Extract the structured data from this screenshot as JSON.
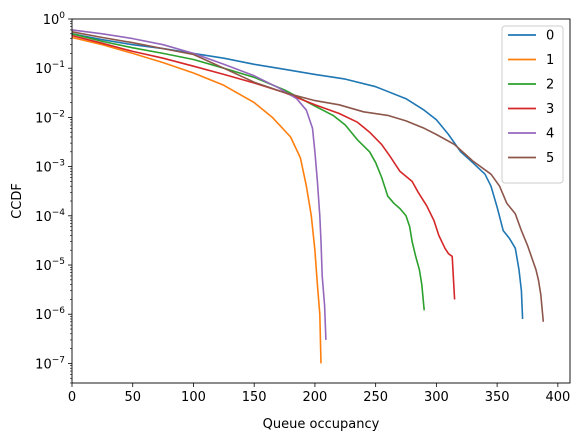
{
  "chart_data": {
    "type": "line",
    "title": "",
    "xlabel": "Queue occupancy",
    "ylabel": "CCDF",
    "xscale": "linear",
    "yscale": "log",
    "xlim": [
      0,
      410
    ],
    "ylim": [
      4e-08,
      1
    ],
    "grid": false,
    "legend_position": "top-right",
    "xticks": [
      0,
      50,
      100,
      150,
      200,
      250,
      300,
      350,
      400
    ],
    "yticks": [
      {
        "value": 1e-07,
        "base": "10",
        "exp": "−7"
      },
      {
        "value": 1e-06,
        "base": "10",
        "exp": "−6"
      },
      {
        "value": 1e-05,
        "base": "10",
        "exp": "−5"
      },
      {
        "value": 0.0001,
        "base": "10",
        "exp": "−4"
      },
      {
        "value": 0.001,
        "base": "10",
        "exp": "−3"
      },
      {
        "value": 0.01,
        "base": "10",
        "exp": "−2"
      },
      {
        "value": 0.1,
        "base": "10",
        "exp": "−1"
      },
      {
        "value": 1,
        "base": "10",
        "exp": "0"
      }
    ],
    "series": [
      {
        "name": "0",
        "color": "#1f77b4",
        "points": [
          [
            0,
            0.5
          ],
          [
            25,
            0.38
          ],
          [
            50,
            0.3
          ],
          [
            75,
            0.25
          ],
          [
            100,
            0.2
          ],
          [
            125,
            0.16
          ],
          [
            150,
            0.12
          ],
          [
            175,
            0.095
          ],
          [
            200,
            0.075
          ],
          [
            225,
            0.06
          ],
          [
            250,
            0.042
          ],
          [
            275,
            0.024
          ],
          [
            290,
            0.014
          ],
          [
            300,
            0.009
          ],
          [
            310,
            0.0045
          ],
          [
            320,
            0.002
          ],
          [
            330,
            0.0012
          ],
          [
            340,
            0.0007
          ],
          [
            345,
            0.0004
          ],
          [
            350,
            0.00015
          ],
          [
            355,
            5e-05
          ],
          [
            360,
            3.5e-05
          ],
          [
            365,
            2.2e-05
          ],
          [
            368,
            8e-06
          ],
          [
            370,
            3e-06
          ],
          [
            371,
            8e-07
          ]
        ]
      },
      {
        "name": "1",
        "color": "#ff7f0e",
        "points": [
          [
            0,
            0.42
          ],
          [
            25,
            0.3
          ],
          [
            50,
            0.2
          ],
          [
            75,
            0.13
          ],
          [
            100,
            0.08
          ],
          [
            125,
            0.045
          ],
          [
            150,
            0.02
          ],
          [
            165,
            0.01
          ],
          [
            180,
            0.004
          ],
          [
            188,
            0.0015
          ],
          [
            193,
            0.0004
          ],
          [
            197,
            0.0001
          ],
          [
            200,
            2e-05
          ],
          [
            202,
            4e-06
          ],
          [
            204,
            1e-06
          ],
          [
            205,
            1e-07
          ]
        ]
      },
      {
        "name": "2",
        "color": "#2ca02c",
        "points": [
          [
            0,
            0.5
          ],
          [
            25,
            0.35
          ],
          [
            50,
            0.26
          ],
          [
            75,
            0.2
          ],
          [
            100,
            0.15
          ],
          [
            125,
            0.1
          ],
          [
            150,
            0.065
          ],
          [
            175,
            0.036
          ],
          [
            200,
            0.017
          ],
          [
            215,
            0.011
          ],
          [
            225,
            0.007
          ],
          [
            235,
            0.0035
          ],
          [
            245,
            0.002
          ],
          [
            250,
            0.0012
          ],
          [
            255,
            0.0006
          ],
          [
            260,
            0.00025
          ],
          [
            265,
            0.00018
          ],
          [
            270,
            0.00014
          ],
          [
            275,
            0.0001
          ],
          [
            278,
            6e-05
          ],
          [
            280,
            3e-05
          ],
          [
            283,
            1.5e-05
          ],
          [
            286,
            8e-06
          ],
          [
            288,
            4e-06
          ],
          [
            290,
            1.2e-06
          ]
        ]
      },
      {
        "name": "3",
        "color": "#d62728",
        "points": [
          [
            0,
            0.46
          ],
          [
            25,
            0.32
          ],
          [
            50,
            0.22
          ],
          [
            75,
            0.16
          ],
          [
            100,
            0.11
          ],
          [
            125,
            0.075
          ],
          [
            150,
            0.05
          ],
          [
            175,
            0.032
          ],
          [
            200,
            0.018
          ],
          [
            220,
            0.012
          ],
          [
            235,
            0.008
          ],
          [
            245,
            0.005
          ],
          [
            255,
            0.0028
          ],
          [
            262,
            0.0016
          ],
          [
            270,
            0.0008
          ],
          [
            280,
            0.0005
          ],
          [
            285,
            0.0003
          ],
          [
            292,
            0.00016
          ],
          [
            298,
            8e-05
          ],
          [
            302,
            4e-05
          ],
          [
            307,
            2.2e-05
          ],
          [
            310,
            1.7e-05
          ],
          [
            313,
            1.5e-05
          ],
          [
            315,
            2e-06
          ]
        ]
      },
      {
        "name": "4",
        "color": "#9467bd",
        "points": [
          [
            0,
            0.6
          ],
          [
            25,
            0.5
          ],
          [
            50,
            0.4
          ],
          [
            75,
            0.3
          ],
          [
            100,
            0.2
          ],
          [
            125,
            0.12
          ],
          [
            150,
            0.07
          ],
          [
            170,
            0.04
          ],
          [
            185,
            0.024
          ],
          [
            193,
            0.014
          ],
          [
            198,
            0.006
          ],
          [
            200,
            0.002
          ],
          [
            202,
            0.0005
          ],
          [
            204,
            0.0001
          ],
          [
            205,
            3e-05
          ],
          [
            206,
            6e-06
          ],
          [
            208,
            1.5e-06
          ],
          [
            209,
            3e-07
          ]
        ]
      },
      {
        "name": "5",
        "color": "#8c564b",
        "points": [
          [
            0,
            0.55
          ],
          [
            25,
            0.42
          ],
          [
            50,
            0.33
          ],
          [
            75,
            0.25
          ],
          [
            100,
            0.19
          ],
          [
            125,
            0.1
          ],
          [
            150,
            0.052
          ],
          [
            175,
            0.032
          ],
          [
            200,
            0.022
          ],
          [
            220,
            0.018
          ],
          [
            240,
            0.013
          ],
          [
            260,
            0.011
          ],
          [
            275,
            0.0085
          ],
          [
            290,
            0.006
          ],
          [
            300,
            0.0045
          ],
          [
            315,
            0.0028
          ],
          [
            330,
            0.0013
          ],
          [
            345,
            0.0007
          ],
          [
            352,
            0.0004
          ],
          [
            358,
            0.00018
          ],
          [
            365,
            0.00011
          ],
          [
            370,
            5e-05
          ],
          [
            375,
            2.5e-05
          ],
          [
            382,
            8e-06
          ],
          [
            384,
            5e-06
          ],
          [
            386,
            2.5e-06
          ],
          [
            388,
            7e-07
          ]
        ]
      }
    ]
  }
}
